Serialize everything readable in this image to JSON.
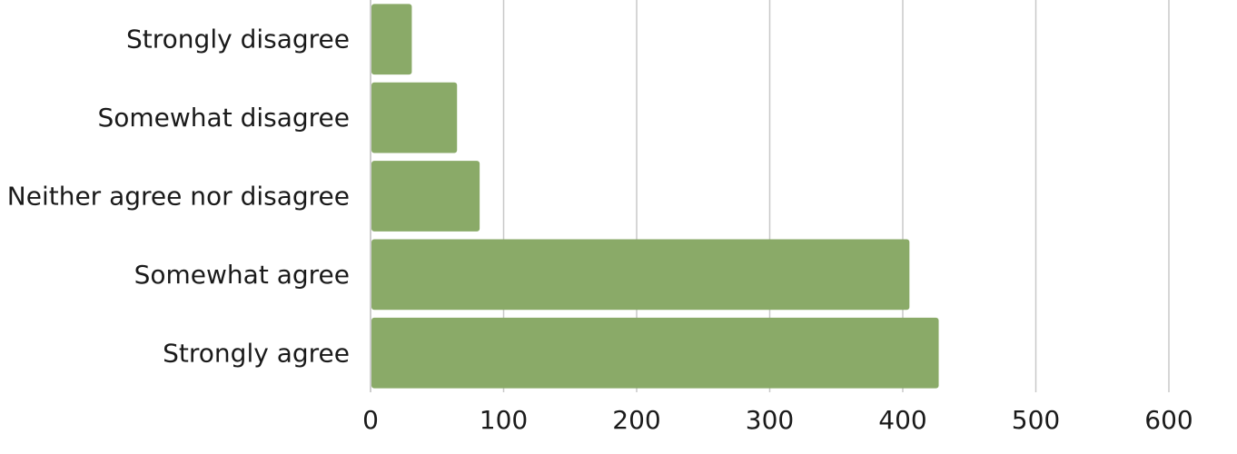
{
  "chart_data": {
    "type": "bar",
    "orientation": "horizontal",
    "categories": [
      "Strongly disagree",
      "Somewhat disagree",
      "Neither agree nor disagree",
      "Somewhat agree",
      "Strongly agree"
    ],
    "values": [
      31,
      65,
      82,
      405,
      427
    ],
    "xlim": [
      0,
      600
    ],
    "xticks": [
      "0",
      "100",
      "200",
      "300",
      "400",
      "500",
      "600"
    ],
    "title": "",
    "xlabel": "",
    "ylabel": "",
    "grid": "vertical",
    "legend": "none",
    "bar_color": "#8aaa68"
  }
}
